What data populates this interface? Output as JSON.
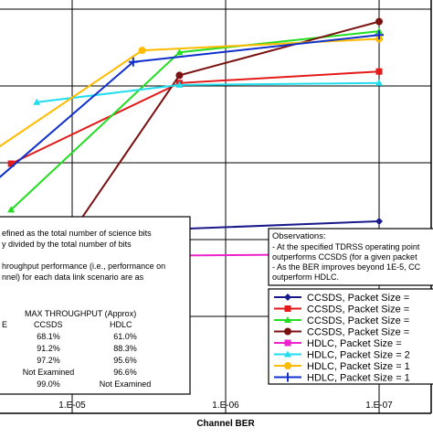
{
  "chart_data": {
    "type": "line",
    "xlabel": "Channel BER",
    "x_scale": "log",
    "x_ticks": [
      "1.E-05",
      "1.E-06",
      "1.E-07"
    ],
    "x_tick_values": [
      1e-05,
      1e-06,
      1e-07
    ],
    "x_direction": "decreasing",
    "grid": true,
    "legend_position": "bottom-right",
    "series": [
      {
        "name": "CCSDS, Packet Size =",
        "color": "#1a1a8c",
        "marker": "diamond",
        "points": [
          [
            2.5e-05,
            0.29
          ],
          [
            2e-06,
            0.48
          ],
          [
            1e-07,
            0.5
          ]
        ]
      },
      {
        "name": "CCSDS, Packet Size =",
        "color": "#e41a1a",
        "marker": "square",
        "points": [
          [
            2.5e-05,
            0.65
          ],
          [
            2e-06,
            0.86
          ],
          [
            1e-07,
            0.89
          ]
        ]
      },
      {
        "name": "CCSDS, Packet Size =",
        "color": "#22dd22",
        "marker": "triangle",
        "points": [
          [
            2.5e-05,
            0.53
          ],
          [
            2e-06,
            0.94
          ],
          [
            1e-07,
            0.995
          ]
        ]
      },
      {
        "name": "CCSDS, Packet Size =",
        "color": "#7a1010",
        "marker": "circle",
        "points": [
          [
            2.5e-05,
            0.24
          ],
          [
            2e-06,
            0.88
          ],
          [
            1e-07,
            1.02
          ]
        ]
      },
      {
        "name": "HDLC, Packet Size =",
        "color": "#ee22cc",
        "marker": "square",
        "points": [
          [
            4e-05,
            0.4
          ],
          [
            4e-06,
            0.41
          ],
          [
            1e-07,
            0.415
          ]
        ]
      },
      {
        "name": "HDLC, Packet Size = 2",
        "color": "#22ddee",
        "marker": "triangle",
        "points": [
          [
            1.7e-05,
            0.81
          ],
          [
            2e-06,
            0.855
          ],
          [
            1e-07,
            0.86
          ]
        ]
      },
      {
        "name": "HDLC, Packet Size = 1",
        "color": "#ffbb00",
        "marker": "circle",
        "points": [
          [
            4e-05,
            0.66
          ],
          [
            3.5e-06,
            0.945
          ],
          [
            1e-07,
            0.975
          ]
        ]
      },
      {
        "name": "HDLC, Packet Size = 1",
        "color": "#1030cc",
        "marker": "plus",
        "points": [
          [
            3.5e-05,
            0.59
          ],
          [
            4e-06,
            0.915
          ],
          [
            1e-07,
            0.985
          ]
        ]
      }
    ],
    "definition_box": {
      "lines": [
        "efined as the total number of science bits",
        "y divided by the total number of bits",
        "",
        "hroughput performance (i.e., performance on",
        "nnel) for each data link scenario are as"
      ],
      "table_title": "MAX THROUGHPUT (Approx)",
      "col_left_label": "E",
      "col_headers": [
        "CCSDS",
        "HDLC"
      ],
      "rows": [
        [
          "68.1%",
          "61.0%"
        ],
        [
          "91.2%",
          "88.3%"
        ],
        [
          "97.2%",
          "95.6%"
        ],
        [
          "Not Examined",
          "96.6%"
        ],
        [
          "99.0%",
          "Not Examined"
        ]
      ]
    },
    "observations": {
      "title": "Observations:",
      "lines": [
        "- At the specified TDRSS operating point",
        "outperforms CCSDS (for a given packet",
        "- As the BER improves beyond 1E-5, CC",
        "outperform HDLC."
      ]
    }
  }
}
